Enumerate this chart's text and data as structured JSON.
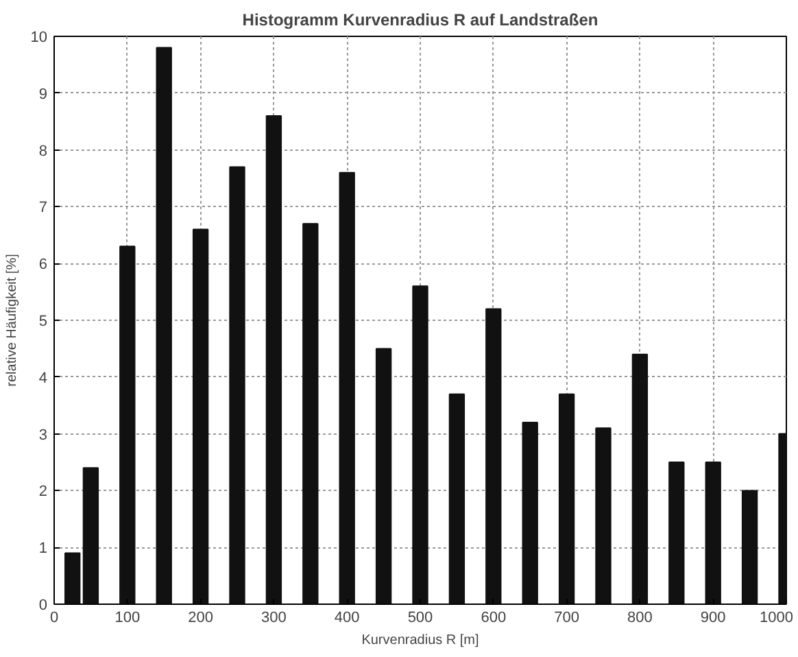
{
  "chart_data": {
    "type": "bar",
    "title": "Histogramm Kurvenradius R auf Landstraßen",
    "xlabel": "Kurvenradius R [m]",
    "ylabel": "relative Häufigkeit [%]",
    "x": [
      25,
      50,
      100,
      150,
      200,
      250,
      300,
      350,
      400,
      450,
      500,
      550,
      600,
      650,
      700,
      750,
      800,
      850,
      900,
      950,
      1000
    ],
    "values": [
      0.9,
      2.4,
      6.3,
      9.8,
      6.6,
      7.7,
      8.6,
      6.7,
      7.6,
      4.5,
      5.6,
      3.7,
      5.2,
      3.2,
      3.7,
      3.1,
      4.4,
      2.5,
      2.5,
      2.0,
      3.0
    ],
    "color": "#111111",
    "xlim": [
      0,
      1000
    ],
    "xticks": [
      0,
      100,
      200,
      300,
      400,
      500,
      600,
      700,
      800,
      900,
      1000
    ],
    "ylim": [
      0,
      10
    ],
    "yticks": [
      0,
      1,
      2,
      3,
      4,
      5,
      6,
      7,
      8,
      9,
      10
    ],
    "grid": true
  }
}
